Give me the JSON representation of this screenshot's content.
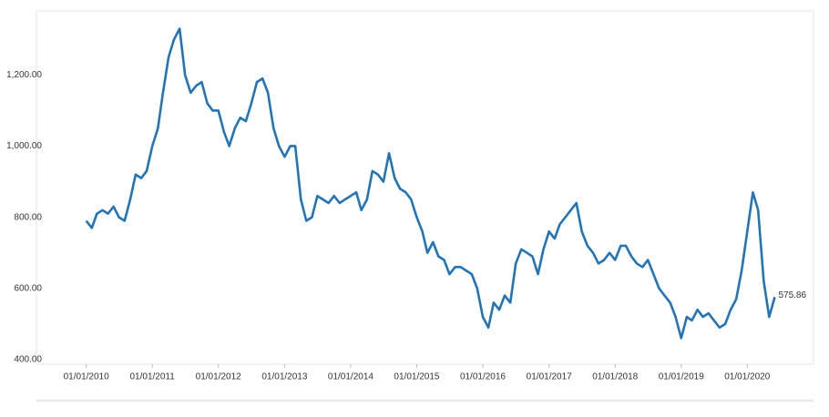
{
  "chart_data": {
    "type": "line",
    "x": [
      "01/01/2010",
      "01/02/2010",
      "01/03/2010",
      "01/04/2010",
      "01/05/2010",
      "01/06/2010",
      "01/07/2010",
      "01/08/2010",
      "01/09/2010",
      "01/10/2010",
      "01/11/2010",
      "01/12/2010",
      "01/01/2011",
      "01/02/2011",
      "01/03/2011",
      "01/04/2011",
      "01/05/2011",
      "01/06/2011",
      "01/07/2011",
      "01/08/2011",
      "01/09/2011",
      "01/10/2011",
      "01/11/2011",
      "01/12/2011",
      "01/01/2012",
      "01/02/2012",
      "01/03/2012",
      "01/04/2012",
      "01/05/2012",
      "01/06/2012",
      "01/07/2012",
      "01/08/2012",
      "01/09/2012",
      "01/10/2012",
      "01/11/2012",
      "01/12/2012",
      "01/01/2013",
      "01/02/2013",
      "01/03/2013",
      "01/04/2013",
      "01/05/2013",
      "01/06/2013",
      "01/07/2013",
      "01/08/2013",
      "01/09/2013",
      "01/10/2013",
      "01/11/2013",
      "01/12/2013",
      "01/01/2014",
      "01/02/2014",
      "01/03/2014",
      "01/04/2014",
      "01/05/2014",
      "01/06/2014",
      "01/07/2014",
      "01/08/2014",
      "01/09/2014",
      "01/10/2014",
      "01/11/2014",
      "01/12/2014",
      "01/01/2015",
      "01/02/2015",
      "01/03/2015",
      "01/04/2015",
      "01/05/2015",
      "01/06/2015",
      "01/07/2015",
      "01/08/2015",
      "01/09/2015",
      "01/10/2015",
      "01/11/2015",
      "01/12/2015",
      "01/01/2016",
      "01/02/2016",
      "01/03/2016",
      "01/04/2016",
      "01/05/2016",
      "01/06/2016",
      "01/07/2016",
      "01/08/2016",
      "01/09/2016",
      "01/10/2016",
      "01/11/2016",
      "01/12/2016",
      "01/01/2017",
      "01/02/2017",
      "01/03/2017",
      "01/04/2017",
      "01/05/2017",
      "01/06/2017",
      "01/07/2017",
      "01/08/2017",
      "01/09/2017",
      "01/10/2017",
      "01/11/2017",
      "01/12/2017",
      "01/01/2018",
      "01/02/2018",
      "01/03/2018",
      "01/04/2018",
      "01/05/2018",
      "01/06/2018",
      "01/07/2018",
      "01/08/2018",
      "01/09/2018",
      "01/10/2018",
      "01/11/2018",
      "01/12/2018",
      "01/01/2019",
      "01/02/2019",
      "01/03/2019",
      "01/04/2019",
      "01/05/2019",
      "01/06/2019",
      "01/07/2019",
      "01/08/2019",
      "01/09/2019",
      "01/10/2019",
      "01/11/2019",
      "01/12/2019",
      "01/01/2020",
      "01/02/2020",
      "01/03/2020",
      "01/04/2020",
      "01/05/2020",
      "01/06/2020"
    ],
    "series": [
      {
        "color": "#2474b5",
        "values": [
          790,
          770,
          810,
          820,
          810,
          830,
          800,
          790,
          850,
          920,
          910,
          930,
          1000,
          1050,
          1150,
          1250,
          1300,
          1330,
          1200,
          1150,
          1170,
          1180,
          1120,
          1100,
          1100,
          1040,
          1000,
          1050,
          1080,
          1070,
          1120,
          1180,
          1190,
          1150,
          1050,
          1000,
          970,
          1000,
          1000,
          850,
          790,
          800,
          860,
          850,
          840,
          860,
          840,
          850,
          860,
          870,
          820,
          850,
          930,
          920,
          900,
          980,
          910,
          880,
          870,
          850,
          800,
          760,
          700,
          730,
          690,
          680,
          640,
          660,
          660,
          650,
          640,
          600,
          520,
          490,
          560,
          540,
          580,
          560,
          670,
          710,
          700,
          690,
          640,
          710,
          760,
          740,
          780,
          800,
          820,
          840,
          760,
          720,
          700,
          670,
          680,
          700,
          680,
          720,
          720,
          690,
          670,
          660,
          680,
          640,
          600,
          580,
          560,
          520,
          460,
          520,
          510,
          540,
          520,
          530,
          510,
          490,
          500,
          540,
          570,
          650,
          760,
          870,
          820,
          620,
          520,
          575.86
        ]
      }
    ],
    "xlim": [
      "01/04/2009",
      "01/01/2021"
    ],
    "xticks": [
      "01/01/2010",
      "01/01/2011",
      "01/01/2012",
      "01/01/2013",
      "01/01/2014",
      "01/01/2015",
      "01/01/2016",
      "01/01/2017",
      "01/01/2018",
      "01/01/2019",
      "01/01/2020"
    ],
    "ylim": [
      387,
      1380
    ],
    "yticks": [
      {
        "value": 400,
        "label": "400.00"
      },
      {
        "value": 600,
        "label": "600.00"
      },
      {
        "value": 800,
        "label": "800.00"
      },
      {
        "value": 1000,
        "label": "1,000.00"
      },
      {
        "value": 1200,
        "label": "1,200.00"
      }
    ]
  }
}
